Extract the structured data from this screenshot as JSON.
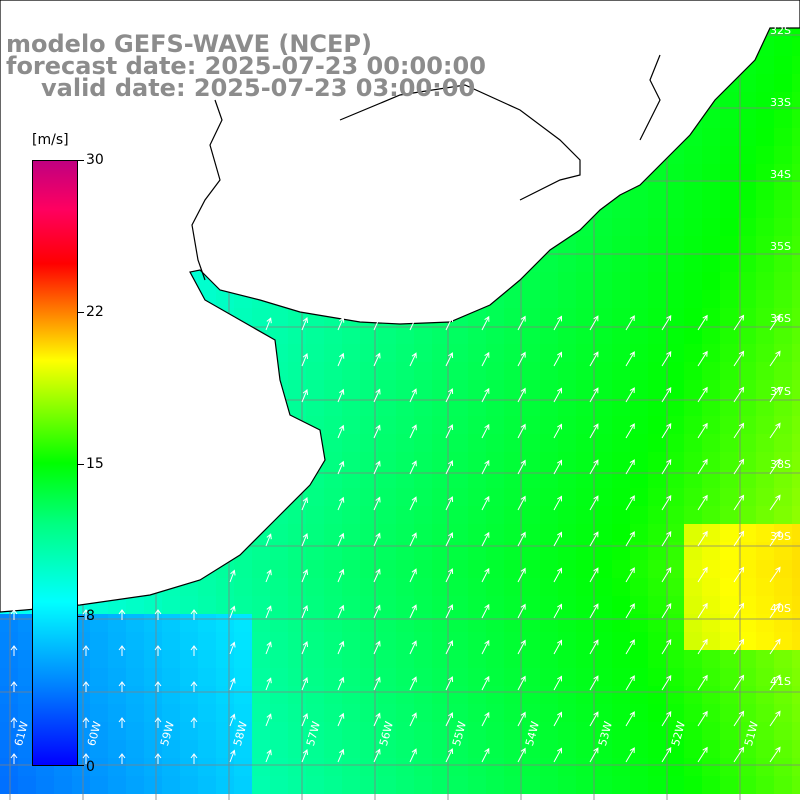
{
  "title": {
    "model": "modelo GEFS-WAVE (NCEP)",
    "forecast": "forecast date: 2025-07-23 00:00:00",
    "valid": "valid date: 2025-07-23 03:00:00"
  },
  "colorbar": {
    "unit": "[m/s]",
    "min": 0,
    "max": 30,
    "ticks": [
      "30",
      "22",
      "15",
      "8",
      "0"
    ],
    "stops": [
      "#0000ff",
      "#0080ff",
      "#00ffff",
      "#00ff80",
      "#00ff00",
      "#ffff00",
      "#ff8000",
      "#ff0000",
      "#c00080"
    ]
  },
  "grid": {
    "lat_labels": [
      "32S",
      "33S",
      "34S",
      "35S",
      "36S",
      "37S",
      "38S",
      "39S",
      "40S",
      "41S"
    ],
    "lon_labels": [
      "61W",
      "60W",
      "59W",
      "58W",
      "57W",
      "56W",
      "55W",
      "54W",
      "53W",
      "52W",
      "51W"
    ]
  },
  "colors": {
    "land": "#ffffff",
    "coast": "#000000",
    "grid": "#808080",
    "arrow": "#ffffff",
    "title_text": "#8c8c8c"
  }
}
